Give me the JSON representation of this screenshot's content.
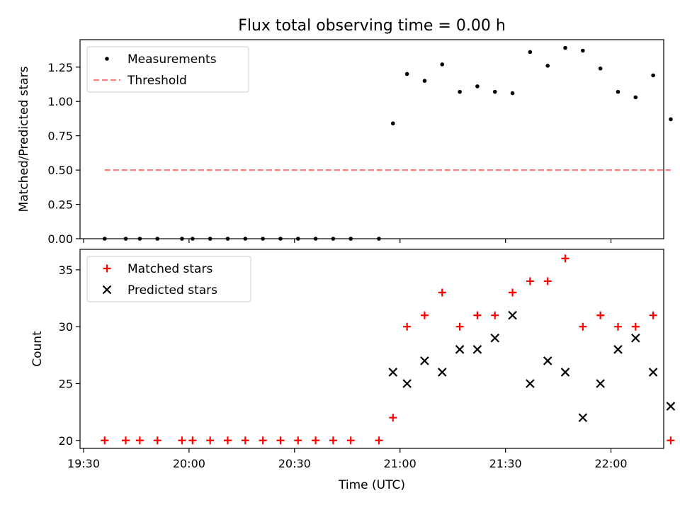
{
  "chart_data": [
    {
      "type": "scatter",
      "title": "Flux total observing time = 0.00 h",
      "xlabel": "",
      "ylabel": "Matched/Predicted stars",
      "ylim": [
        0.0,
        1.45
      ],
      "yticks": [
        0.0,
        0.25,
        0.5,
        0.75,
        1.0,
        1.25
      ],
      "ytick_labels": [
        "0.00",
        "0.25",
        "0.50",
        "0.75",
        "1.00",
        "1.25"
      ],
      "xlim": [
        "19:29",
        "22:15"
      ],
      "xticks": [
        "19:30",
        "20:00",
        "20:30",
        "21:00",
        "21:30",
        "22:00"
      ],
      "legend_position": "top-left",
      "grid": false,
      "series": [
        {
          "name": "Measurements",
          "marker": "dot",
          "color": "#000000",
          "x": [
            "19:36",
            "19:42",
            "19:46",
            "19:51",
            "19:58",
            "20:01",
            "20:06",
            "20:11",
            "20:16",
            "20:21",
            "20:26",
            "20:31",
            "20:36",
            "20:41",
            "20:46",
            "20:54",
            "20:58",
            "21:02",
            "21:07",
            "21:12",
            "21:17",
            "21:22",
            "21:27",
            "21:32",
            "21:37",
            "21:42",
            "21:47",
            "21:52",
            "21:57",
            "22:02",
            "22:07",
            "22:12",
            "22:17"
          ],
          "y": [
            0,
            0,
            0,
            0,
            0,
            0,
            0,
            0,
            0,
            0,
            0,
            0,
            0,
            0,
            0,
            0,
            0.84,
            1.2,
            1.15,
            1.27,
            1.07,
            1.11,
            1.07,
            1.06,
            1.36,
            1.26,
            1.39,
            1.37,
            1.24,
            1.07,
            1.03,
            1.19,
            0.87
          ]
        },
        {
          "name": "Threshold",
          "style": "dashed-line",
          "color": "#ff7f7f",
          "x": [
            "19:36",
            "22:17"
          ],
          "y": [
            0.5,
            0.5
          ]
        }
      ]
    },
    {
      "type": "scatter",
      "title": "",
      "xlabel": "Time (UTC)",
      "ylabel": "Count",
      "ylim": [
        19.3,
        36.8
      ],
      "yticks": [
        20,
        25,
        30,
        35
      ],
      "ytick_labels": [
        "20",
        "25",
        "30",
        "35"
      ],
      "xlim": [
        "19:29",
        "22:15"
      ],
      "xticks": [
        "19:30",
        "20:00",
        "20:30",
        "21:00",
        "21:30",
        "22:00"
      ],
      "xtick_labels": [
        "19:30",
        "20:00",
        "20:30",
        "21:00",
        "21:30",
        "22:00"
      ],
      "legend_position": "top-left",
      "grid": false,
      "series": [
        {
          "name": "Matched stars",
          "marker": "plus",
          "color": "#ff0000",
          "x": [
            "19:36",
            "19:42",
            "19:46",
            "19:51",
            "19:58",
            "20:01",
            "20:06",
            "20:11",
            "20:16",
            "20:21",
            "20:26",
            "20:31",
            "20:36",
            "20:41",
            "20:46",
            "20:54",
            "20:58",
            "21:02",
            "21:07",
            "21:12",
            "21:17",
            "21:22",
            "21:27",
            "21:32",
            "21:37",
            "21:42",
            "21:47",
            "21:52",
            "21:57",
            "22:02",
            "22:07",
            "22:12",
            "22:17"
          ],
          "y": [
            20,
            20,
            20,
            20,
            20,
            20,
            20,
            20,
            20,
            20,
            20,
            20,
            20,
            20,
            20,
            20,
            22,
            30,
            31,
            33,
            30,
            31,
            31,
            33,
            34,
            34,
            36,
            30,
            31,
            30,
            30,
            31,
            20
          ]
        },
        {
          "name": "Predicted stars",
          "marker": "x",
          "color": "#000000",
          "x": [
            "20:58",
            "21:02",
            "21:07",
            "21:12",
            "21:17",
            "21:22",
            "21:27",
            "21:32",
            "21:37",
            "21:42",
            "21:47",
            "21:52",
            "21:57",
            "22:02",
            "22:07",
            "22:12",
            "22:17"
          ],
          "y": [
            26,
            25,
            27,
            26,
            28,
            28,
            29,
            31,
            25,
            27,
            26,
            22,
            25,
            28,
            29,
            26,
            23
          ]
        }
      ]
    }
  ]
}
